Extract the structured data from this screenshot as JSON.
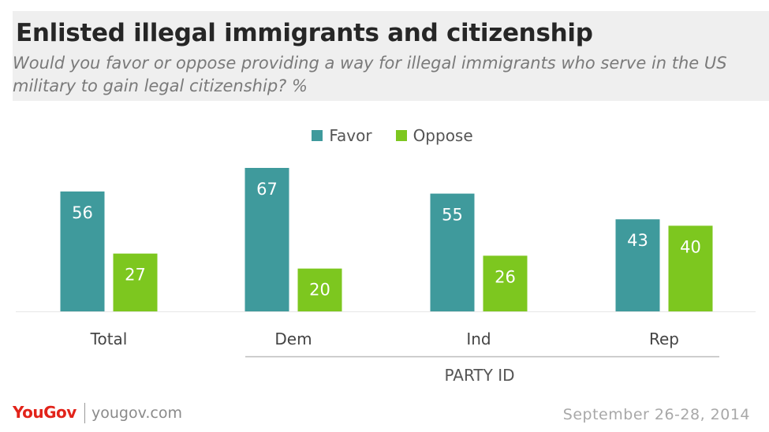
{
  "header": {
    "title": "Enlisted illegal immigrants and citizenship",
    "subtitle": "Would you favor or oppose providing a way for illegal immigrants who serve in the US military to gain legal citizenship? %"
  },
  "chart_data": {
    "type": "bar",
    "title": "Enlisted illegal immigrants and citizenship",
    "subtitle": "Would you favor or oppose providing a way for illegal immigrants who serve in the US military to gain legal citizenship? %",
    "categories": [
      "Total",
      "Dem",
      "Ind",
      "Rep"
    ],
    "group_label": "PARTY ID",
    "grouped_categories": [
      "Dem",
      "Ind",
      "Rep"
    ],
    "series": [
      {
        "name": "Favor",
        "values": [
          56,
          67,
          55,
          43
        ],
        "color": "#3f9a9c"
      },
      {
        "name": "Oppose",
        "values": [
          27,
          20,
          26,
          40
        ],
        "color": "#7dc71f"
      }
    ],
    "ylim": [
      0,
      67
    ],
    "grid": false,
    "legend_position": "top-center"
  },
  "footer": {
    "logo": "YouGov",
    "site": "yougov.com",
    "date": "September 26-28, 2014"
  }
}
